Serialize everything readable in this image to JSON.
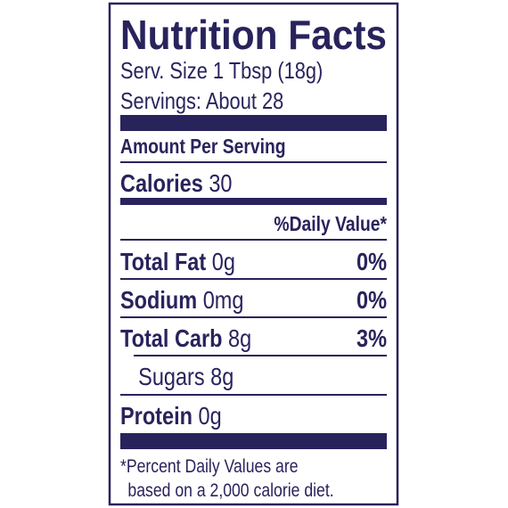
{
  "label": {
    "title": "Nutrition Facts",
    "serving_size": "Serv. Size 1 Tbsp (18g)",
    "servings": "Servings: About 28",
    "amount_per_serving": "Amount Per Serving",
    "calories": {
      "name": "Calories",
      "amount": "30"
    },
    "daily_value_header": "%Daily Value*",
    "nutrients": [
      {
        "name": "Total Fat",
        "amount": "0g",
        "dv": "0%"
      },
      {
        "name": "Sodium",
        "amount": "0mg",
        "dv": "0%"
      },
      {
        "name": "Total Carb",
        "amount": "8g",
        "dv": "3%"
      },
      {
        "name": "Sugars",
        "amount": "8g"
      },
      {
        "name": "Protein",
        "amount": "0g"
      }
    ],
    "footnote": [
      "*Percent Daily Values are",
      "based on a 2,000 calorie diet."
    ]
  }
}
